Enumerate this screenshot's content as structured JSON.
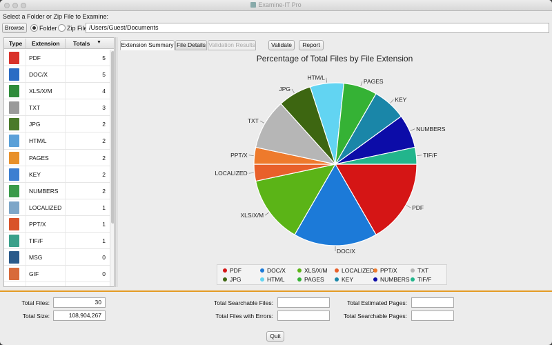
{
  "window": {
    "title": "Examine-IT Pro"
  },
  "source": {
    "prompt": "Select a Folder or Zip File to Examine:",
    "browse_label": "Browse",
    "folder_label": "Folder",
    "zip_label": "Zip File",
    "selected": "Folder",
    "path": "/Users/Guest/Documents"
  },
  "table": {
    "headers": {
      "type": "Type",
      "extension": "Extension",
      "totals": "Totals"
    },
    "sort_indicator": "▼",
    "rows": [
      {
        "ext": "PDF",
        "total": "5",
        "icon": "pdf-file-icon",
        "color": "#d9322a"
      },
      {
        "ext": "DOC/X",
        "total": "5",
        "icon": "word-file-icon",
        "color": "#2b6cc4"
      },
      {
        "ext": "XLS/X/M",
        "total": "4",
        "icon": "excel-file-icon",
        "color": "#2e8b3a"
      },
      {
        "ext": "TXT",
        "total": "3",
        "icon": "text-file-icon",
        "color": "#9a9a9a"
      },
      {
        "ext": "JPG",
        "total": "2",
        "icon": "jpg-file-icon",
        "color": "#4a7a2a"
      },
      {
        "ext": "HTM/L",
        "total": "2",
        "icon": "html-file-icon",
        "color": "#5aa0d8"
      },
      {
        "ext": "PAGES",
        "total": "2",
        "icon": "pages-file-icon",
        "color": "#e8902a"
      },
      {
        "ext": "KEY",
        "total": "2",
        "icon": "keynote-file-icon",
        "color": "#3d7fd1"
      },
      {
        "ext": "NUMBERS",
        "total": "2",
        "icon": "numbers-file-icon",
        "color": "#3a9a4a"
      },
      {
        "ext": "LOCALIZED",
        "total": "1",
        "icon": "folder-icon",
        "color": "#7da6c8"
      },
      {
        "ext": "PPT/X",
        "total": "1",
        "icon": "powerpoint-file-icon",
        "color": "#d9532a"
      },
      {
        "ext": "TIF/F",
        "total": "1",
        "icon": "tif-file-icon",
        "color": "#3aa08a"
      },
      {
        "ext": "MSG",
        "total": "0",
        "icon": "mail-icon",
        "color": "#2a5a8a"
      },
      {
        "ext": "GIF",
        "total": "0",
        "icon": "gif-file-icon",
        "color": "#d86a3a"
      }
    ]
  },
  "tabs": {
    "extension_summary": "Extension Summary",
    "file_details": "File Details",
    "validation_results": "Validation Results",
    "validate": "Validate",
    "report": "Report"
  },
  "chart_data": {
    "type": "pie",
    "title": "Percentage of Total Files by File Extension",
    "slices": [
      {
        "label": "PDF",
        "value": 5,
        "color": "#d51515"
      },
      {
        "label": "DOC/X",
        "value": 5,
        "color": "#1c7ad8"
      },
      {
        "label": "XLS/X/M",
        "value": 4,
        "color": "#5bb417"
      },
      {
        "label": "LOCALIZED",
        "value": 1,
        "color": "#e8602a"
      },
      {
        "label": "PPT/X",
        "value": 1,
        "color": "#ee7a2c"
      },
      {
        "label": "TXT",
        "value": 3,
        "color": "#b6b6b6"
      },
      {
        "label": "JPG",
        "value": 2,
        "color": "#3d6611"
      },
      {
        "label": "HTM/L",
        "value": 2,
        "color": "#62d4f2"
      },
      {
        "label": "PAGES",
        "value": 2,
        "color": "#35b235"
      },
      {
        "label": "KEY",
        "value": 2,
        "color": "#1a86a8"
      },
      {
        "label": "NUMBERS",
        "value": 2,
        "color": "#0c0ca8"
      },
      {
        "label": "TIF/F",
        "value": 1,
        "color": "#22b58c"
      }
    ],
    "legend": [
      [
        "PDF",
        "DOC/X",
        "XLS/X/M",
        "LOCALIZED",
        "PPT/X",
        "TXT"
      ],
      [
        "JPG",
        "HTM/L",
        "PAGES",
        "KEY",
        "NUMBERS",
        "TIF/F"
      ]
    ]
  },
  "stats": {
    "total_files_label": "Total Files:",
    "total_files": "30",
    "total_size_label": "Total Size:",
    "total_size": "108,904,267",
    "searchable_files_label": "Total Searchable Files:",
    "searchable_files": "",
    "files_with_errors_label": "Total Files with Errors:",
    "files_with_errors": "",
    "estimated_pages_label": "Total Estimated Pages:",
    "estimated_pages": "",
    "searchable_pages_label": "Total Searchable Pages:",
    "searchable_pages": ""
  },
  "footer": {
    "quit_label": "Quit"
  }
}
